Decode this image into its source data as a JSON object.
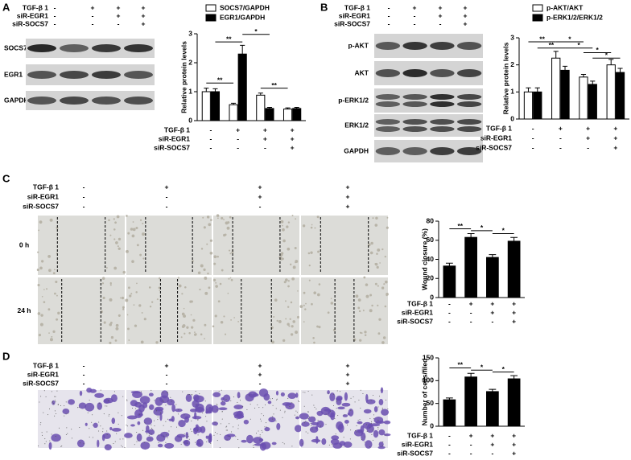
{
  "panels": [
    {
      "label": "A",
      "conditions": {
        "rows": [
          "TGF-β 1",
          "siR-EGR1",
          "siR-SOCS7"
        ],
        "signs": [
          [
            "-",
            "+",
            "+",
            "+"
          ],
          [
            "-",
            "-",
            "+",
            "+"
          ],
          [
            "-",
            "-",
            "-",
            "+"
          ]
        ]
      },
      "blots": [
        "SOCS7",
        "EGR1",
        "GAPDH"
      ]
    },
    {
      "label": "B",
      "conditions": {
        "rows": [
          "TGF-β 1",
          "siR-EGR1",
          "siR-SOCS7"
        ],
        "signs": [
          [
            "-",
            "+",
            "+",
            "+"
          ],
          [
            "-",
            "-",
            "+",
            "+"
          ],
          [
            "-",
            "-",
            "-",
            "+"
          ]
        ]
      },
      "blots": [
        "p-AKT",
        "AKT",
        "p-ERK1/2",
        "ERK1/2",
        "GAPDH"
      ]
    },
    {
      "label": "C",
      "conditions": {
        "rows": [
          "TGF-β 1",
          "siR-EGR1",
          "siR-SOCS7"
        ],
        "signs": [
          [
            "-",
            "+",
            "+",
            "+"
          ],
          [
            "-",
            "-",
            "+",
            "+"
          ],
          [
            "-",
            "-",
            "-",
            "+"
          ]
        ]
      },
      "image_rows": [
        "0 h",
        "24 h"
      ]
    },
    {
      "label": "D",
      "conditions": {
        "rows": [
          "TGF-β 1",
          "siR-EGR1",
          "siR-SOCS7"
        ],
        "signs": [
          [
            "-",
            "+",
            "+",
            "+"
          ],
          [
            "-",
            "-",
            "+",
            "+"
          ],
          [
            "-",
            "-",
            "-",
            "+"
          ]
        ]
      }
    }
  ],
  "chart_data": [
    {
      "type": "bar",
      "y_label": "Relative protein levels",
      "categories": [
        null,
        null,
        null,
        null
      ],
      "series": [
        {
          "name": "SOCS7/GAPDH",
          "color": "#ffffff",
          "values": [
            1.0,
            0.55,
            0.88,
            0.4
          ],
          "errors": [
            0.12,
            0.05,
            0.07,
            0.04
          ]
        },
        {
          "name": "EGR1/GAPDH",
          "color": "#000000",
          "values": [
            1.0,
            2.3,
            0.42,
            0.42
          ],
          "errors": [
            0.1,
            0.3,
            0.04,
            0.04
          ]
        }
      ],
      "ylim": [
        0,
        3
      ],
      "yticks": [
        0,
        1,
        2,
        3
      ],
      "annotations": [
        "**",
        "**",
        "*",
        "**"
      ],
      "conditions": {
        "rows": [
          "TGF-β 1",
          "siR-EGR1",
          "siR-SOCS7"
        ],
        "signs": [
          [
            "-",
            "+",
            "+",
            "+"
          ],
          [
            "-",
            "-",
            "+",
            "+"
          ],
          [
            "-",
            "-",
            "-",
            "+"
          ]
        ]
      }
    },
    {
      "type": "bar",
      "y_label": "Relative protein levels",
      "categories": [
        null,
        null,
        null,
        null
      ],
      "series": [
        {
          "name": "p-AKT/AKT",
          "color": "#ffffff",
          "values": [
            1.0,
            2.25,
            1.55,
            2.0
          ],
          "errors": [
            0.15,
            0.25,
            0.1,
            0.2
          ]
        },
        {
          "name": "p-ERK1/2/ERK1/2",
          "color": "#000000",
          "values": [
            1.0,
            1.8,
            1.28,
            1.72
          ],
          "errors": [
            0.15,
            0.15,
            0.12,
            0.15
          ]
        }
      ],
      "ylim": [
        0,
        3
      ],
      "yticks": [
        0,
        1,
        2,
        3
      ],
      "annotations": [
        "**",
        "**",
        "*",
        "*",
        "*",
        "*"
      ],
      "conditions": {
        "rows": [
          "TGF-β 1",
          "siR-EGR1",
          "siR-SOCS7"
        ],
        "signs": [
          [
            "-",
            "+",
            "+",
            "+"
          ],
          [
            "-",
            "-",
            "+",
            "+"
          ],
          [
            "-",
            "-",
            "-",
            "+"
          ]
        ]
      }
    },
    {
      "type": "bar",
      "y_label": "Wound closure (%)",
      "categories": [
        null,
        null,
        null,
        null
      ],
      "series": [
        {
          "color": "#000000",
          "values": [
            33,
            63,
            42,
            59
          ],
          "errors": [
            3,
            4,
            3,
            4
          ]
        }
      ],
      "ylim": [
        0,
        80
      ],
      "yticks": [
        0,
        20,
        40,
        60,
        80
      ],
      "annotations": [
        "**",
        "*",
        "*"
      ],
      "conditions": {
        "rows": [
          "TGF-β 1",
          "siR-EGR1",
          "siR-SOCS7"
        ],
        "signs": [
          [
            "-",
            "+",
            "+",
            "+"
          ],
          [
            "-",
            "-",
            "+",
            "+"
          ],
          [
            "-",
            "-",
            "-",
            "+"
          ]
        ]
      }
    },
    {
      "type": "bar",
      "y_label": "Number of cells/filed",
      "categories": [
        null,
        null,
        null,
        null
      ],
      "series": [
        {
          "color": "#000000",
          "values": [
            58,
            108,
            76,
            104
          ],
          "errors": [
            4,
            8,
            5,
            7
          ]
        }
      ],
      "ylim": [
        0,
        150
      ],
      "yticks": [
        0,
        50,
        100,
        150
      ],
      "annotations": [
        "**",
        "*",
        "*"
      ],
      "conditions": {
        "rows": [
          "TGF-β 1",
          "siR-EGR1",
          "siR-SOCS7"
        ],
        "signs": [
          [
            "-",
            "+",
            "+",
            "+"
          ],
          [
            "-",
            "-",
            "+",
            "+"
          ],
          [
            "-",
            "-",
            "-",
            "+"
          ]
        ]
      }
    }
  ]
}
